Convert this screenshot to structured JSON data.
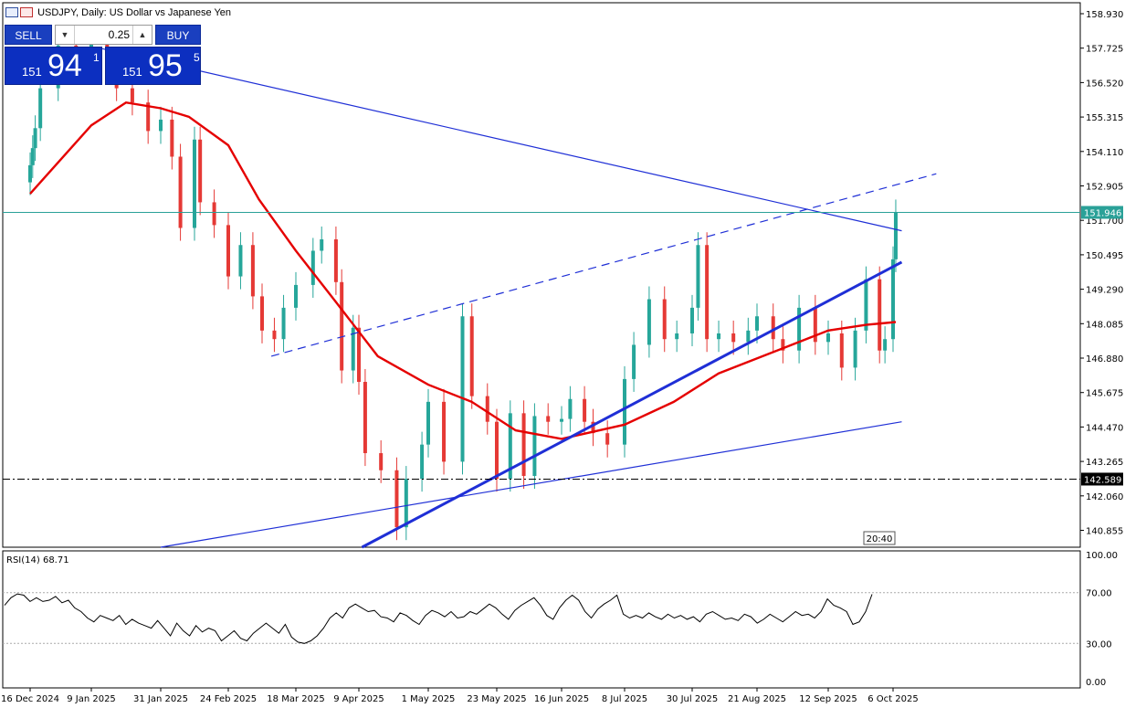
{
  "header": {
    "title": "USDJPY, Daily:  US Dollar vs Japanese Yen",
    "icons": [
      "chart-window-icon",
      "symbol-flag-icon"
    ]
  },
  "trade_panel": {
    "sell_label": "SELL",
    "buy_label": "BUY",
    "lot_value": "0.25",
    "sell_price_prefix": "151",
    "sell_price_big": "94",
    "sell_price_sup": "1",
    "buy_price_prefix": "151",
    "buy_price_big": "95",
    "buy_price_sup": "5"
  },
  "rsi": {
    "label": "RSI(14) 68.71"
  },
  "timestamp_label": "20:40",
  "colors": {
    "bull": "#26a69a",
    "bear": "#e53935",
    "ma": "#e50000",
    "trendline": "#1f2fd6",
    "hline": "#2aa198",
    "panel_blue": "#0c2fc0"
  },
  "chart_data": [
    {
      "type": "candlestick",
      "title": "USDJPY, Daily:  US Dollar vs Japanese Yen",
      "ylim": [
        140.2,
        159.3
      ],
      "y_ticks": [
        "158.930",
        "157.725",
        "156.520",
        "155.315",
        "154.110",
        "152.905",
        "151.700",
        "150.495",
        "149.290",
        "148.085",
        "146.880",
        "145.675",
        "144.470",
        "143.265",
        "142.060",
        "140.855"
      ],
      "x_ticks": [
        "16 Dec 2024",
        "9 Jan 2025",
        "31 Jan 2025",
        "24 Feb 2025",
        "18 Mar 2025",
        "9 Apr 2025",
        "1 May 2025",
        "23 May 2025",
        "16 Jun 2025",
        "8 Jul 2025",
        "30 Jul 2025",
        "21 Aug 2025",
        "12 Sep 2025",
        "6 Oct 2025"
      ],
      "price_labels": [
        {
          "label": "151.946",
          "value": 151.946,
          "style": "solid-teal"
        },
        {
          "label": "142.589",
          "value": 142.589,
          "style": "dash-dot-black"
        }
      ],
      "close_series": [
        {
          "x": "16 Dec 2024",
          "y": 153.6
        },
        {
          "x": "17 Dec 2024",
          "y": 154.2
        },
        {
          "x": "18 Dec 2024",
          "y": 154.9
        },
        {
          "x": "20 Dec 2024",
          "y": 156.3
        },
        {
          "x": "27 Dec 2024",
          "y": 157.8
        },
        {
          "x": "3 Jan 2025",
          "y": 157.3
        },
        {
          "x": "9 Jan 2025",
          "y": 158.0
        },
        {
          "x": "14 Jan 2025",
          "y": 157.2
        },
        {
          "x": "17 Jan 2025",
          "y": 156.3
        },
        {
          "x": "22 Jan 2025",
          "y": 155.8
        },
        {
          "x": "27 Jan 2025",
          "y": 154.8
        },
        {
          "x": "31 Jan 2025",
          "y": 155.2
        },
        {
          "x": "4 Feb 2025",
          "y": 153.9
        },
        {
          "x": "7 Feb 2025",
          "y": 151.4
        },
        {
          "x": "12 Feb 2025",
          "y": 154.5
        },
        {
          "x": "14 Feb 2025",
          "y": 152.3
        },
        {
          "x": "19 Feb 2025",
          "y": 151.5
        },
        {
          "x": "24 Feb 2025",
          "y": 149.7
        },
        {
          "x": "28 Feb 2025",
          "y": 150.8
        },
        {
          "x": "4 Mar 2025",
          "y": 149.0
        },
        {
          "x": "7 Mar 2025",
          "y": 147.8
        },
        {
          "x": "11 Mar 2025",
          "y": 147.5
        },
        {
          "x": "14 Mar 2025",
          "y": 148.6
        },
        {
          "x": "18 Mar 2025",
          "y": 149.4
        },
        {
          "x": "24 Mar 2025",
          "y": 150.6
        },
        {
          "x": "27 Mar 2025",
          "y": 151.0
        },
        {
          "x": "1 Apr 2025",
          "y": 149.5
        },
        {
          "x": "3 Apr 2025",
          "y": 146.4
        },
        {
          "x": "7 Apr 2025",
          "y": 147.9
        },
        {
          "x": "9 Apr 2025",
          "y": 146.0
        },
        {
          "x": "11 Apr 2025",
          "y": 143.5
        },
        {
          "x": "16 Apr 2025",
          "y": 142.9
        },
        {
          "x": "21 Apr 2025",
          "y": 140.9
        },
        {
          "x": "24 Apr 2025",
          "y": 142.6
        },
        {
          "x": "29 Apr 2025",
          "y": 143.8
        },
        {
          "x": "1 May 2025",
          "y": 145.3
        },
        {
          "x": "6 May 2025",
          "y": 143.2
        },
        {
          "x": "12 May 2025",
          "y": 148.3
        },
        {
          "x": "15 May 2025",
          "y": 145.5
        },
        {
          "x": "20 May 2025",
          "y": 144.6
        },
        {
          "x": "23 May 2025",
          "y": 142.6
        },
        {
          "x": "28 May 2025",
          "y": 144.9
        },
        {
          "x": "2 Jun 2025",
          "y": 142.7
        },
        {
          "x": "6 Jun 2025",
          "y": 144.8
        },
        {
          "x": "11 Jun 2025",
          "y": 144.6
        },
        {
          "x": "16 Jun 2025",
          "y": 144.7
        },
        {
          "x": "19 Jun 2025",
          "y": 145.4
        },
        {
          "x": "24 Jun 2025",
          "y": 144.6
        },
        {
          "x": "27 Jun 2025",
          "y": 144.2
        },
        {
          "x": "2 Jul 2025",
          "y": 143.8
        },
        {
          "x": "8 Jul 2025",
          "y": 146.1
        },
        {
          "x": "11 Jul 2025",
          "y": 147.3
        },
        {
          "x": "16 Jul 2025",
          "y": 148.9
        },
        {
          "x": "21 Jul 2025",
          "y": 147.5
        },
        {
          "x": "25 Jul 2025",
          "y": 147.7
        },
        {
          "x": "30 Jul 2025",
          "y": 148.6
        },
        {
          "x": "1 Aug 2025",
          "y": 150.8
        },
        {
          "x": "4 Aug 2025",
          "y": 147.5
        },
        {
          "x": "8 Aug 2025",
          "y": 147.7
        },
        {
          "x": "13 Aug 2025",
          "y": 147.4
        },
        {
          "x": "18 Aug 2025",
          "y": 147.8
        },
        {
          "x": "21 Aug 2025",
          "y": 148.3
        },
        {
          "x": "26 Aug 2025",
          "y": 147.5
        },
        {
          "x": "29 Aug 2025",
          "y": 147.1
        },
        {
          "x": "3 Sep 2025",
          "y": 148.6
        },
        {
          "x": "8 Sep 2025",
          "y": 147.4
        },
        {
          "x": "12 Sep 2025",
          "y": 147.7
        },
        {
          "x": "17 Sep 2025",
          "y": 146.5
        },
        {
          "x": "22 Sep 2025",
          "y": 147.8
        },
        {
          "x": "26 Sep 2025",
          "y": 149.6
        },
        {
          "x": "1 Oct 2025",
          "y": 147.1
        },
        {
          "x": "3 Oct 2025",
          "y": 147.5
        },
        {
          "x": "6 Oct 2025",
          "y": 150.3
        },
        {
          "x": "7 Oct 2025",
          "y": 151.946
        }
      ],
      "moving_average": [
        {
          "x": "16 Dec 2024",
          "y": 152.6
        },
        {
          "x": "9 Jan 2025",
          "y": 155.0
        },
        {
          "x": "20 Jan 2025",
          "y": 155.8
        },
        {
          "x": "31 Jan 2025",
          "y": 155.6
        },
        {
          "x": "10 Feb 2025",
          "y": 155.3
        },
        {
          "x": "24 Feb 2025",
          "y": 154.3
        },
        {
          "x": "6 Mar 2025",
          "y": 152.4
        },
        {
          "x": "18 Mar 2025",
          "y": 150.6
        },
        {
          "x": "1 Apr 2025",
          "y": 148.8
        },
        {
          "x": "15 Apr 2025",
          "y": 146.9
        },
        {
          "x": "1 May 2025",
          "y": 145.9
        },
        {
          "x": "15 May 2025",
          "y": 145.3
        },
        {
          "x": "30 May 2025",
          "y": 144.3
        },
        {
          "x": "16 Jun 2025",
          "y": 144.0
        },
        {
          "x": "8 Jul 2025",
          "y": 144.5
        },
        {
          "x": "24 Jul 2025",
          "y": 145.3
        },
        {
          "x": "8 Aug 2025",
          "y": 146.3
        },
        {
          "x": "25 Aug 2025",
          "y": 147.0
        },
        {
          "x": "12 Sep 2025",
          "y": 147.8
        },
        {
          "x": "26 Sep 2025",
          "y": 148.0
        },
        {
          "x": "7 Oct 2025",
          "y": 148.1
        }
      ],
      "trendlines": [
        {
          "name": "resistance-downtrend",
          "style": "solid-thin",
          "from": {
            "x": "12 Jan 2025",
            "y": 157.7
          },
          "to": {
            "x": "8 Oct 2025+",
            "y": 151.3
          }
        },
        {
          "name": "channel-upper",
          "style": "dashed",
          "from": {
            "x": "10 Mar 2025",
            "y": 146.9
          },
          "to": {
            "x": "22 Oct 2025",
            "y": 153.3
          }
        },
        {
          "name": "support-uptrend",
          "style": "solid-thick",
          "from": {
            "x": "10 Apr 2025",
            "y": 140.2
          },
          "to": {
            "x": "8 Oct 2025+",
            "y": 150.2
          }
        },
        {
          "name": "long-term-support",
          "style": "solid-thin",
          "from": {
            "x": "31 Jan 2025",
            "y": 140.2
          },
          "to": {
            "x": "8 Oct 2025+",
            "y": 144.6
          }
        }
      ]
    },
    {
      "type": "line",
      "title": "RSI(14) 68.71",
      "ylim": [
        0,
        100
      ],
      "y_ticks": [
        "100.00",
        "70.00",
        "30.00",
        "0.00"
      ],
      "levels": [
        70,
        30
      ],
      "values": [
        60,
        66,
        69,
        68,
        63,
        66,
        63,
        64,
        67,
        62,
        64,
        58,
        55,
        50,
        47,
        52,
        50,
        48,
        52,
        45,
        49,
        46,
        44,
        42,
        48,
        42,
        36,
        46,
        40,
        36,
        44,
        39,
        42,
        40,
        32,
        36,
        40,
        34,
        32,
        38,
        42,
        46,
        42,
        38,
        45,
        35,
        31,
        30,
        32,
        36,
        42,
        50,
        54,
        50,
        58,
        61,
        58,
        55,
        56,
        51,
        50,
        47,
        54,
        52,
        48,
        45,
        52,
        56,
        54,
        51,
        55,
        50,
        51,
        55,
        53,
        57,
        61,
        58,
        53,
        49,
        56,
        60,
        63,
        66,
        60,
        52,
        49,
        58,
        64,
        68,
        64,
        55,
        50,
        57,
        61,
        64,
        68,
        53,
        50,
        52,
        50,
        54,
        51,
        49,
        53,
        50,
        52,
        49,
        51,
        47,
        53,
        55,
        52,
        49,
        50,
        48,
        53,
        51,
        46,
        49,
        53,
        50,
        47,
        51,
        55,
        52,
        53,
        50,
        55,
        65,
        60,
        58,
        55,
        45,
        47,
        55,
        68.71
      ]
    }
  ]
}
